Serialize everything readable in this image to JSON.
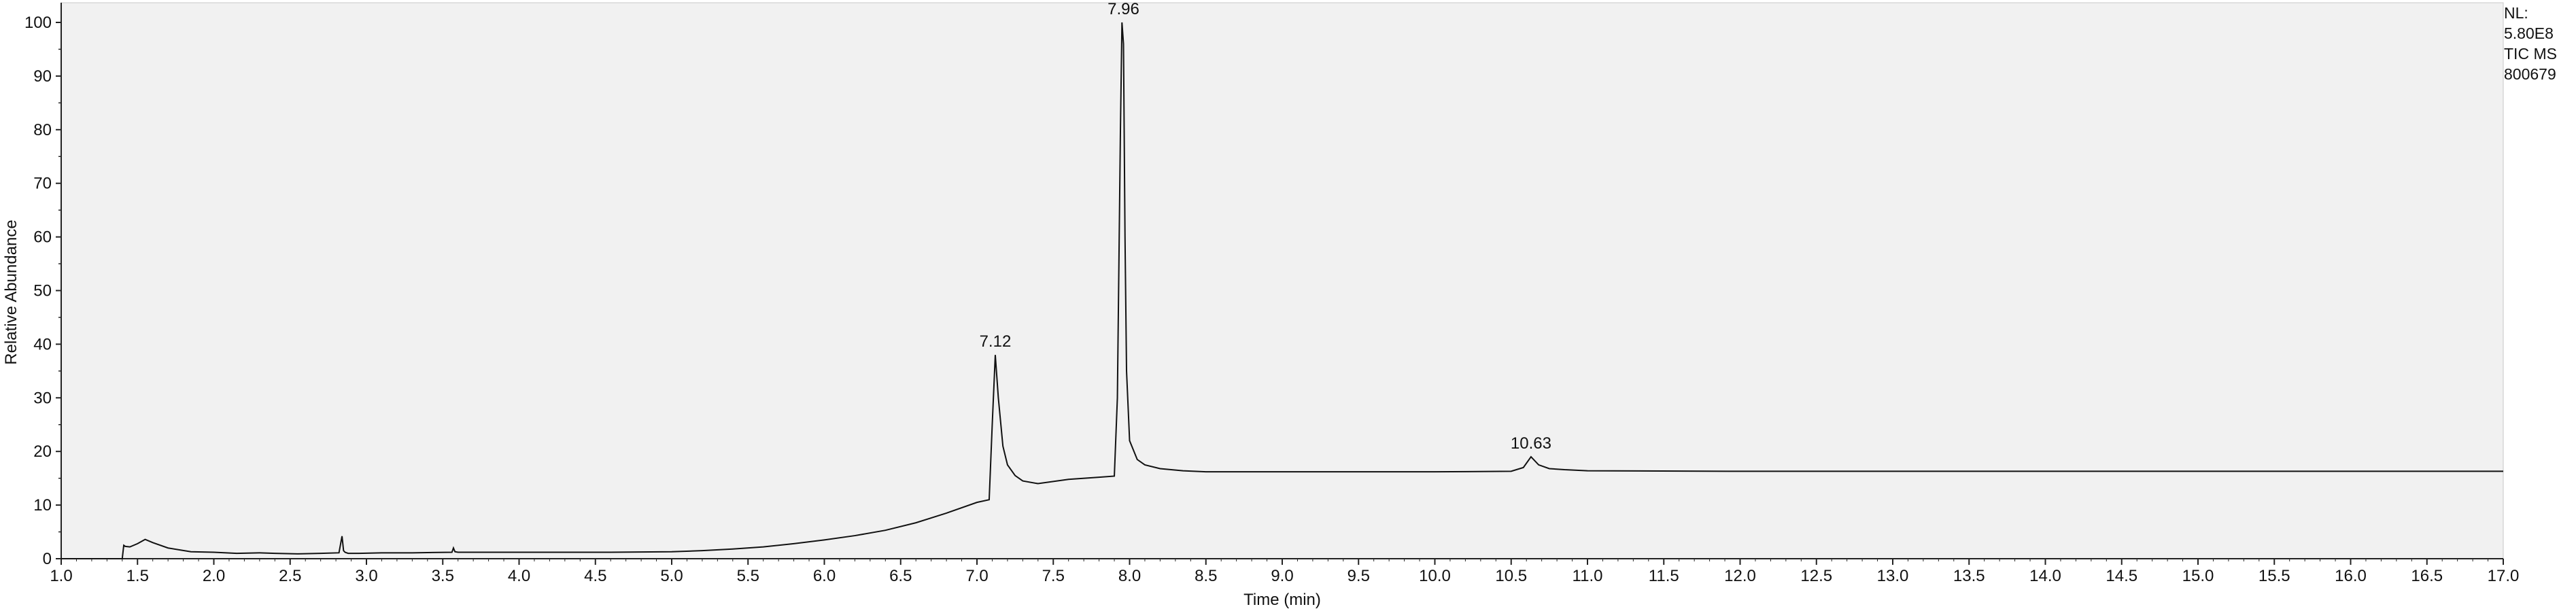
{
  "chart_data": {
    "type": "line",
    "xlabel": "Time (min)",
    "ylabel": "Relative Abundance",
    "xlim": [
      1.0,
      17.0
    ],
    "ylim": [
      0,
      100
    ],
    "x_ticks": [
      "1.0",
      "1.5",
      "2.0",
      "2.5",
      "3.0",
      "3.5",
      "4.0",
      "4.5",
      "5.0",
      "5.5",
      "6.0",
      "6.5",
      "7.0",
      "7.5",
      "8.0",
      "8.5",
      "9.0",
      "9.5",
      "10.0",
      "10.5",
      "11.0",
      "11.5",
      "12.0",
      "12.5",
      "13.0",
      "13.5",
      "14.0",
      "14.5",
      "15.0",
      "15.5",
      "16.0",
      "16.5",
      "17.0"
    ],
    "y_ticks": [
      "0",
      "10",
      "20",
      "30",
      "40",
      "50",
      "60",
      "70",
      "80",
      "90",
      "100"
    ],
    "grid": false,
    "plot_background": "#f1f1f1",
    "line_color": "#111111",
    "peak_labels": [
      {
        "x": 7.12,
        "y": 38,
        "text": "7.12"
      },
      {
        "x": 7.96,
        "y": 100,
        "text": "7.96"
      },
      {
        "x": 10.63,
        "y": 19,
        "text": "10.63"
      }
    ],
    "series": [
      {
        "x": [
          1.0,
          1.4,
          1.41,
          1.42,
          1.45,
          1.5,
          1.55,
          1.6,
          1.7,
          1.85,
          2.0,
          2.15,
          2.3,
          2.4,
          2.55,
          2.7,
          2.82,
          2.84,
          2.85,
          2.86,
          2.88,
          2.95,
          3.1,
          3.3,
          3.56,
          3.57,
          3.58,
          3.6,
          3.8,
          4.0,
          4.3,
          4.6,
          5.0,
          5.2,
          5.4,
          5.6,
          5.8,
          6.0,
          6.2,
          6.4,
          6.6,
          6.8,
          7.0,
          7.08,
          7.1,
          7.12,
          7.14,
          7.17,
          7.2,
          7.25,
          7.3,
          7.4,
          7.6,
          7.8,
          7.9,
          7.92,
          7.94,
          7.95,
          7.96,
          7.97,
          7.98,
          8.0,
          8.05,
          8.1,
          8.2,
          8.35,
          8.5,
          9.0,
          9.5,
          10.0,
          10.5,
          10.58,
          10.63,
          10.68,
          10.75,
          10.85,
          11.0,
          12.0,
          13.0,
          14.0,
          15.0,
          16.0,
          17.0
        ],
        "values": [
          0,
          0,
          2.5,
          2.3,
          2.2,
          2.8,
          3.6,
          3.0,
          2.0,
          1.3,
          1.2,
          1.0,
          1.1,
          1.0,
          0.9,
          1.0,
          1.1,
          4.2,
          1.5,
          1.2,
          1.0,
          1.0,
          1.1,
          1.1,
          1.2,
          2.0,
          1.3,
          1.2,
          1.2,
          1.2,
          1.2,
          1.2,
          1.3,
          1.5,
          1.8,
          2.2,
          2.8,
          3.5,
          4.3,
          5.3,
          6.7,
          8.5,
          10.5,
          11.0,
          25.0,
          38.0,
          30.0,
          21.0,
          17.5,
          15.5,
          14.5,
          14.0,
          14.8,
          15.2,
          15.4,
          30.0,
          80.0,
          100.0,
          96.0,
          60.0,
          35.0,
          22.0,
          18.5,
          17.5,
          16.8,
          16.4,
          16.2,
          16.2,
          16.2,
          16.2,
          16.3,
          17.0,
          19.0,
          17.5,
          16.8,
          16.6,
          16.4,
          16.3,
          16.3,
          16.3,
          16.3,
          16.3,
          16.3
        ]
      }
    ]
  },
  "info_box": {
    "line1": "NL:",
    "line2": "5.80E8",
    "line3": "TIC  MS",
    "line4": "800679"
  }
}
